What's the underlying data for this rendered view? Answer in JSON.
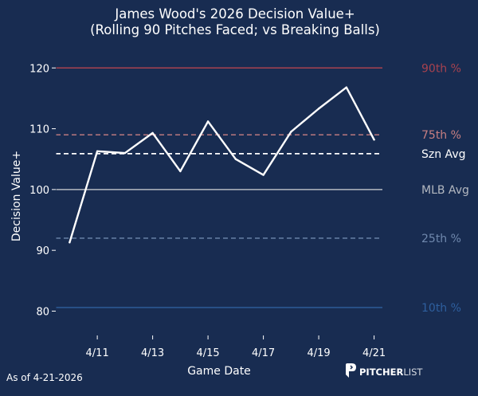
{
  "chart_data": {
    "type": "line",
    "title_line1": "James Wood's 2026 Decision Value+",
    "title_line2": "(Rolling 90 Pitches Faced; vs Breaking Balls)",
    "xlabel": "Game Date",
    "ylabel": "Decision Value+",
    "ylim": [
      76,
      122
    ],
    "yticks": [
      80,
      90,
      100,
      110,
      120
    ],
    "xlim": [
      -0.5,
      11.3
    ],
    "xticks": [
      {
        "pos": 1,
        "label": "4/11"
      },
      {
        "pos": 3,
        "label": "4/13"
      },
      {
        "pos": 5,
        "label": "4/15"
      },
      {
        "pos": 7,
        "label": "4/17"
      },
      {
        "pos": 9,
        "label": "4/19"
      },
      {
        "pos": 11,
        "label": "4/21"
      }
    ],
    "grid": false,
    "series": [
      {
        "color": "#ffffff",
        "x": [
          0,
          1,
          2,
          3,
          4,
          5,
          6,
          7,
          8,
          9,
          10,
          11
        ],
        "y": [
          91.3,
          106.3,
          106.0,
          109.3,
          103.0,
          111.2,
          105.0,
          102.4,
          109.5,
          113.3,
          116.8,
          108.2
        ]
      }
    ],
    "reference_lines": [
      {
        "label": "90th %",
        "value": 120,
        "color": "#a7424f",
        "style": "solid"
      },
      {
        "label": "75th %",
        "value": 109,
        "color": "#c77f82",
        "style": "dashed"
      },
      {
        "label": "Szn Avg",
        "value": 105.9,
        "color": "#ffffff",
        "style": "dashed"
      },
      {
        "label": "MLB Avg",
        "value": 100,
        "color": "#b3b8c0",
        "style": "solid"
      },
      {
        "label": "25th %",
        "value": 92,
        "color": "#6f88ad",
        "style": "dashed"
      },
      {
        "label": "10th %",
        "value": 80.6,
        "color": "#2e5f9e",
        "style": "solid"
      }
    ]
  },
  "footer": {
    "as_of": "As of 4-21-2026",
    "brand_bold": "PITCHER",
    "brand_light": "LIST"
  }
}
